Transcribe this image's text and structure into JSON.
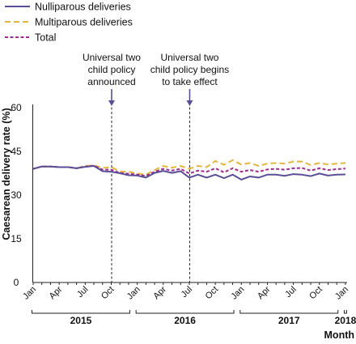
{
  "chart_data": {
    "type": "line",
    "title": "",
    "ylabel": "Caesarean delivery rate (%)",
    "xlabel": "Month",
    "ylim": [
      0,
      60
    ],
    "yticks": [
      0,
      15,
      30,
      45,
      60
    ],
    "grid": false,
    "legend_position": "top-left",
    "month_ticks": [
      "Jan",
      "Apr",
      "Jul",
      "Oct",
      "Jan",
      "Apr",
      "Jul",
      "Oct",
      "Jan",
      "Apr",
      "Jul",
      "Oct",
      "Jan"
    ],
    "years": [
      {
        "label": "2015",
        "start_index": 0,
        "end_index": 11
      },
      {
        "label": "2016",
        "start_index": 12,
        "end_index": 23
      },
      {
        "label": "2017",
        "start_index": 24,
        "end_index": 35
      },
      {
        "label": "2018",
        "start_index": 36,
        "end_index": 36
      }
    ],
    "x": [
      "2015-01",
      "2015-02",
      "2015-03",
      "2015-04",
      "2015-05",
      "2015-06",
      "2015-07",
      "2015-08",
      "2015-09",
      "2015-10",
      "2015-11",
      "2015-12",
      "2016-01",
      "2016-02",
      "2016-03",
      "2016-04",
      "2016-05",
      "2016-06",
      "2016-07",
      "2016-08",
      "2016-09",
      "2016-10",
      "2016-11",
      "2016-12",
      "2017-01",
      "2017-02",
      "2017-03",
      "2017-04",
      "2017-05",
      "2017-06",
      "2017-07",
      "2017-08",
      "2017-09",
      "2017-10",
      "2017-11",
      "2017-12",
      "2018-01"
    ],
    "series": [
      {
        "name": "Nulliparous deliveries",
        "color": "#5b4e96",
        "dash": "solid",
        "values": [
          39.0,
          39.8,
          39.8,
          39.6,
          39.6,
          39.2,
          39.7,
          40.0,
          38.2,
          38.0,
          37.5,
          36.8,
          36.7,
          36.0,
          37.6,
          38.3,
          37.6,
          38.2,
          36.0,
          37.0,
          36.0,
          37.0,
          35.8,
          37.0,
          35.3,
          36.4,
          36.0,
          37.0,
          37.0,
          36.6,
          37.2,
          37.0,
          36.5,
          37.4,
          36.7,
          37.0,
          37.1
        ]
      },
      {
        "name": "Multiparous deliveries",
        "color": "#e3b73f",
        "dash": "long",
        "values": [
          39.0,
          39.8,
          39.8,
          39.6,
          39.6,
          39.2,
          40.0,
          40.2,
          39.3,
          39.6,
          38.1,
          38.0,
          37.4,
          37.0,
          38.6,
          40.0,
          39.4,
          40.0,
          39.0,
          40.0,
          39.6,
          41.7,
          40.4,
          42.0,
          40.5,
          41.0,
          40.0,
          40.8,
          41.0,
          40.8,
          41.5,
          41.5,
          40.3,
          41.0,
          40.5,
          40.8,
          41.0
        ]
      },
      {
        "name": "Total",
        "color": "#9b2e8e",
        "dash": "short",
        "values": [
          39.0,
          39.8,
          39.8,
          39.6,
          39.6,
          39.2,
          39.8,
          40.1,
          38.7,
          38.7,
          37.6,
          37.3,
          37.0,
          36.6,
          38.0,
          39.0,
          38.4,
          39.0,
          37.4,
          38.4,
          38.0,
          39.2,
          37.8,
          39.2,
          38.0,
          38.6,
          38.0,
          38.8,
          39.0,
          38.7,
          39.2,
          39.3,
          38.4,
          39.2,
          38.6,
          38.9,
          39.1
        ]
      }
    ],
    "annotations": [
      {
        "index": 9,
        "lines": [
          "Universal two",
          "child policy",
          "announced"
        ]
      },
      {
        "index": 18,
        "lines": [
          "Universal two",
          "child policy begins",
          "to take effect"
        ]
      }
    ]
  }
}
